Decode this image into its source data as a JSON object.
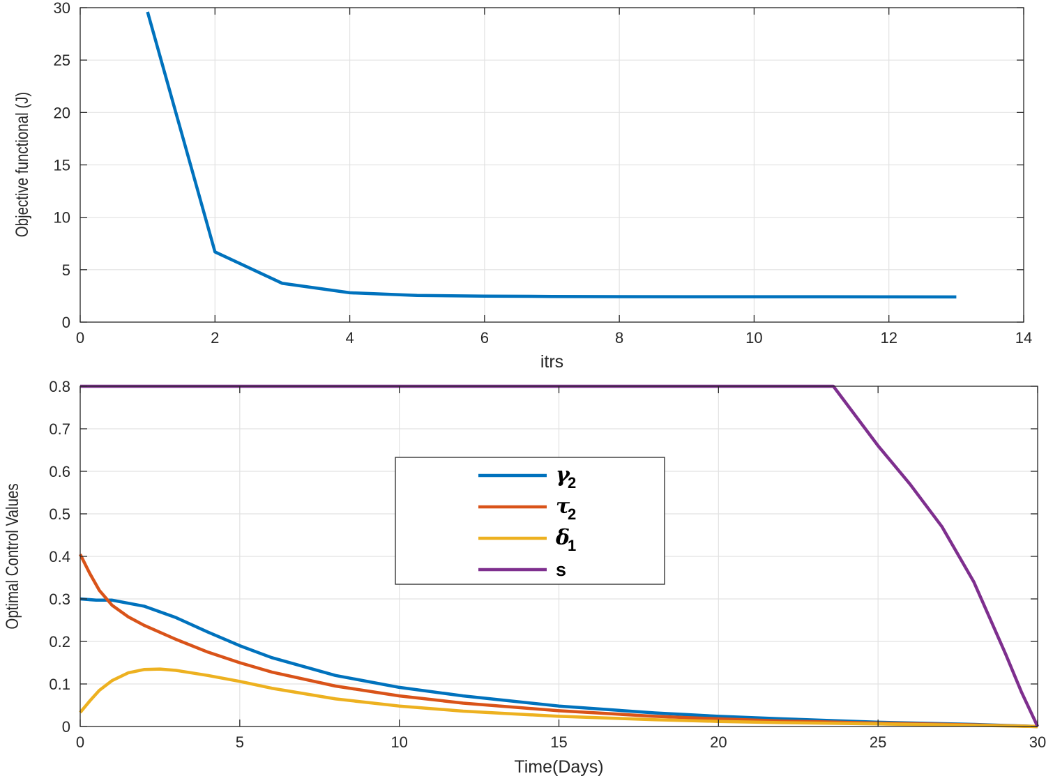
{
  "chart_data": [
    {
      "type": "line",
      "xlabel": "itrs",
      "ylabel": "Objective functional (J)",
      "xlim": [
        0,
        14
      ],
      "ylim": [
        0,
        30
      ],
      "xticks": [
        0,
        2,
        4,
        6,
        8,
        10,
        12,
        14
      ],
      "yticks": [
        0,
        5,
        10,
        15,
        20,
        25,
        30
      ],
      "grid": true,
      "series": [
        {
          "color": "#0072BD",
          "x": [
            1,
            2,
            3,
            4,
            5,
            6,
            7,
            8,
            9,
            10,
            11,
            12,
            13
          ],
          "y": [
            29.6,
            6.7,
            3.7,
            2.8,
            2.55,
            2.48,
            2.45,
            2.43,
            2.42,
            2.42,
            2.42,
            2.41,
            2.4
          ]
        }
      ]
    },
    {
      "type": "line",
      "xlabel": "Time(Days)",
      "ylabel": "Optimal Control Values",
      "xlim": [
        0,
        30
      ],
      "ylim": [
        0,
        0.8
      ],
      "xticks": [
        0,
        5,
        10,
        15,
        20,
        25,
        30
      ],
      "yticks": [
        0,
        0.1,
        0.2,
        0.3,
        0.4,
        0.5,
        0.6,
        0.7,
        0.8
      ],
      "grid": true,
      "legend": "center",
      "series": [
        {
          "name": "γ",
          "sub": "2",
          "color": "#0072BD",
          "x": [
            0,
            0.5,
            1,
            2,
            3,
            4,
            5,
            6,
            8,
            10,
            12,
            15,
            18,
            20,
            22,
            25,
            28,
            30
          ],
          "y": [
            0.3,
            0.297,
            0.297,
            0.283,
            0.256,
            0.222,
            0.19,
            0.162,
            0.12,
            0.092,
            0.072,
            0.048,
            0.032,
            0.024,
            0.018,
            0.01,
            0.005,
            0.0
          ]
        },
        {
          "name": "τ",
          "sub": "2",
          "color": "#D95319",
          "x": [
            0,
            0.3,
            0.6,
            1,
            1.5,
            2,
            3,
            4,
            5,
            6,
            8,
            10,
            12,
            15,
            18,
            20,
            22,
            25,
            28,
            30
          ],
          "y": [
            0.405,
            0.36,
            0.32,
            0.285,
            0.258,
            0.238,
            0.205,
            0.175,
            0.15,
            0.128,
            0.095,
            0.072,
            0.055,
            0.037,
            0.024,
            0.018,
            0.013,
            0.008,
            0.004,
            0.0
          ]
        },
        {
          "name": "δ",
          "sub": "1",
          "color": "#EDB120",
          "x": [
            0,
            0.3,
            0.6,
            1,
            1.5,
            2,
            2.5,
            3,
            4,
            5,
            6,
            8,
            10,
            12,
            15,
            18,
            20,
            22,
            25,
            28,
            30
          ],
          "y": [
            0.033,
            0.06,
            0.085,
            0.108,
            0.126,
            0.134,
            0.135,
            0.132,
            0.12,
            0.106,
            0.09,
            0.065,
            0.048,
            0.036,
            0.024,
            0.016,
            0.012,
            0.009,
            0.006,
            0.003,
            0.0
          ]
        },
        {
          "name": "s",
          "sub": "",
          "color": "#7E2F8E",
          "x": [
            0,
            23.6,
            24,
            25,
            26,
            27,
            28,
            29,
            29.5,
            30
          ],
          "y": [
            0.8,
            0.8,
            0.76,
            0.66,
            0.57,
            0.47,
            0.34,
            0.17,
            0.08,
            0.0
          ]
        }
      ]
    }
  ]
}
